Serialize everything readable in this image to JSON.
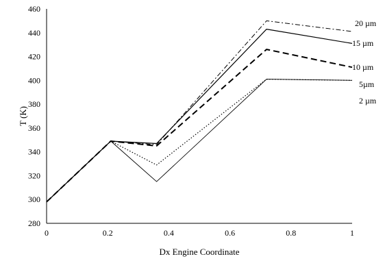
{
  "chart_data": {
    "type": "line",
    "xlabel": "Dx Engine Coordinate",
    "ylabel": "T (K)",
    "xlim": [
      0,
      1
    ],
    "ylim": [
      280,
      460
    ],
    "xticks": [
      0,
      0.2,
      0.4,
      0.6,
      0.8,
      1
    ],
    "xtick_labels": [
      "0",
      "0.2",
      "0.4",
      "0.6",
      "0.8",
      "1"
    ],
    "yticks": [
      280,
      300,
      320,
      340,
      360,
      380,
      400,
      420,
      440,
      460
    ],
    "ytick_labels": [
      "280",
      "300",
      "320",
      "340",
      "360",
      "380",
      "400",
      "420",
      "440",
      "460"
    ],
    "grid": false,
    "series": [
      {
        "name": "20 µm",
        "style": "dashdot",
        "stroke_width": 1,
        "x": [
          0,
          0.21,
          0.36,
          0.72,
          1.0
        ],
        "y": [
          298,
          349,
          346,
          450,
          441
        ]
      },
      {
        "name": "15 µm",
        "style": "solid",
        "stroke_width": 1.2,
        "x": [
          0,
          0.21,
          0.36,
          0.72,
          1.0
        ],
        "y": [
          298,
          349,
          347,
          443,
          431
        ]
      },
      {
        "name": "10 µm",
        "style": "dashed",
        "stroke_width": 2,
        "x": [
          0,
          0.21,
          0.36,
          0.72,
          1.0
        ],
        "y": [
          298,
          349,
          345,
          426,
          411
        ]
      },
      {
        "name": "5µm",
        "style": "dotted",
        "stroke_width": 1.2,
        "x": [
          0,
          0.21,
          0.36,
          0.72,
          1.0
        ],
        "y": [
          298,
          349,
          329,
          401,
          400
        ]
      },
      {
        "name": "2 µm",
        "style": "solid",
        "stroke_width": 0.9,
        "x": [
          0,
          0.21,
          0.36,
          0.72,
          1.0
        ],
        "y": [
          298,
          349,
          315,
          401,
          400
        ]
      }
    ]
  }
}
